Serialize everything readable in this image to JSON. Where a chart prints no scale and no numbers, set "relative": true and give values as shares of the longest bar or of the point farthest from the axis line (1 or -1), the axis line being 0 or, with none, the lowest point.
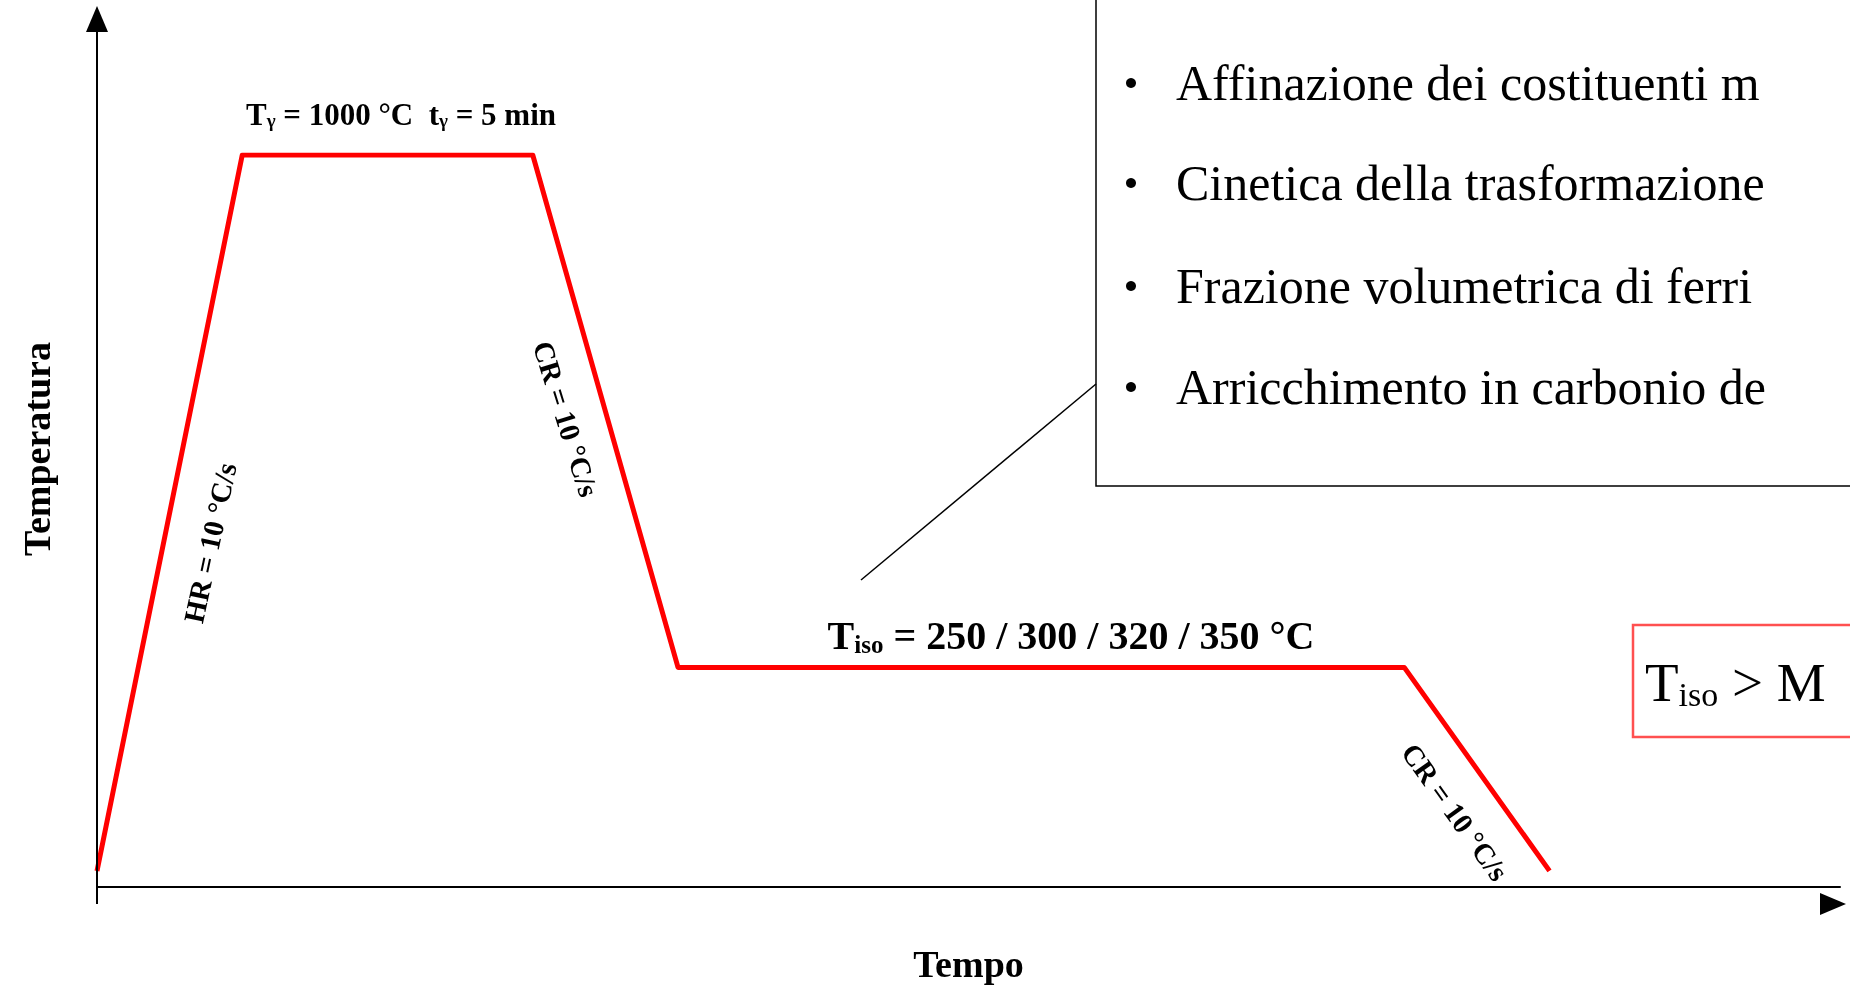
{
  "chart_data": {
    "type": "line",
    "relative": true,
    "xlabel": "Tempo",
    "ylabel": "Temperatura",
    "categories": [
      null,
      null,
      null,
      null,
      null,
      null,
      null,
      null,
      null,
      null,
      null,
      null,
      null
    ],
    "series": [
      {
        "color": "#ff0000",
        "values": [
          0.022,
          1,
          null,
          1,
          0.3,
          null,
          null,
          null,
          null,
          0.3,
          0.022,
          null,
          null
        ]
      }
    ],
    "marker": "none",
    "grid": false,
    "annotations": [
      "T$_{γ}$ = 1000 °C  t$_{γ}$ = 5 min",
      "HR = 10 °C/s",
      "CR = 10 °C/s",
      "T$_{iso}$ = 250 / 300 / 320 / 350 °C",
      "CR = 10 °C/s",
      "Affinazione dei costituenti m",
      "Cinetica della trasformazione",
      "Frazione volumetrica di ferri",
      "Arricchimento in carbonio de",
      "T$_{iso}$ > M"
    ]
  }
}
